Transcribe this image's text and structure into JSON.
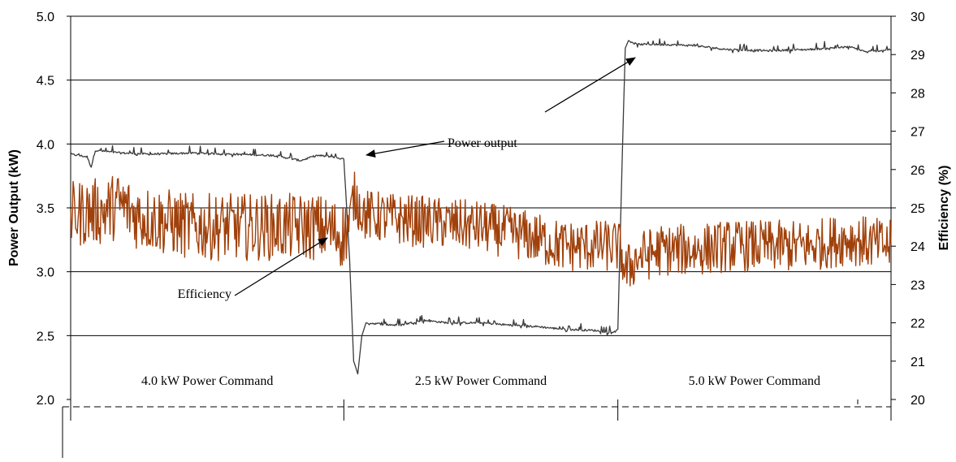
{
  "chart_data": {
    "type": "line",
    "title": "",
    "xlabel": "",
    "ylabel_left": "Power Output (kW)",
    "ylabel_right": "Efficiency (%)",
    "ylim_left": [
      2.0,
      5.0
    ],
    "ylim_right": [
      20,
      30
    ],
    "yticks_left": [
      "5.0",
      "4.5",
      "4.0",
      "3.5",
      "3.0",
      "2.5",
      "2.0"
    ],
    "yticks_right": [
      "30",
      "29",
      "28",
      "27",
      "26",
      "25",
      "24",
      "23",
      "22",
      "21",
      "20"
    ],
    "xlim": [
      0,
      1000
    ],
    "grid": true,
    "segments": [
      {
        "label": "4.0 kW Power Command",
        "start": 0,
        "end": 333
      },
      {
        "label": "2.5 kW Power Command",
        "start": 333,
        "end": 667
      },
      {
        "label": "5.0 kW Power Command",
        "start": 667,
        "end": 1000
      }
    ],
    "series": [
      {
        "name": "Power output",
        "axis": "left",
        "color": "#3a3a3a",
        "points": [
          [
            0,
            3.92
          ],
          [
            20,
            3.9
          ],
          [
            25,
            3.82
          ],
          [
            30,
            3.95
          ],
          [
            60,
            3.93
          ],
          [
            100,
            3.92
          ],
          [
            150,
            3.93
          ],
          [
            200,
            3.92
          ],
          [
            250,
            3.91
          ],
          [
            280,
            3.87
          ],
          [
            300,
            3.91
          ],
          [
            320,
            3.9
          ],
          [
            333,
            3.88
          ],
          [
            340,
            3.1
          ],
          [
            345,
            2.3
          ],
          [
            350,
            2.2
          ],
          [
            355,
            2.5
          ],
          [
            360,
            2.6
          ],
          [
            400,
            2.58
          ],
          [
            430,
            2.62
          ],
          [
            460,
            2.6
          ],
          [
            500,
            2.6
          ],
          [
            540,
            2.58
          ],
          [
            570,
            2.57
          ],
          [
            600,
            2.55
          ],
          [
            640,
            2.54
          ],
          [
            660,
            2.52
          ],
          [
            667,
            2.55
          ],
          [
            672,
            3.8
          ],
          [
            676,
            4.75
          ],
          [
            680,
            4.81
          ],
          [
            690,
            4.78
          ],
          [
            720,
            4.78
          ],
          [
            760,
            4.77
          ],
          [
            800,
            4.74
          ],
          [
            850,
            4.73
          ],
          [
            900,
            4.74
          ],
          [
            950,
            4.76
          ],
          [
            970,
            4.72
          ],
          [
            1000,
            4.74
          ]
        ]
      },
      {
        "name": "Efficiency",
        "axis": "right",
        "color": "#a0400a",
        "points": [
          [
            0,
            24.8
          ],
          [
            20,
            24.9
          ],
          [
            40,
            24.9
          ],
          [
            60,
            25.1
          ],
          [
            80,
            24.8
          ],
          [
            100,
            24.7
          ],
          [
            150,
            24.5
          ],
          [
            200,
            24.5
          ],
          [
            250,
            24.5
          ],
          [
            300,
            24.5
          ],
          [
            333,
            24.3
          ],
          [
            340,
            24.6
          ],
          [
            345,
            25.3
          ],
          [
            360,
            24.8
          ],
          [
            400,
            24.7
          ],
          [
            450,
            24.6
          ],
          [
            500,
            24.5
          ],
          [
            550,
            24.3
          ],
          [
            600,
            24.0
          ],
          [
            640,
            24.0
          ],
          [
            667,
            24.0
          ],
          [
            672,
            23.8
          ],
          [
            676,
            23.3
          ],
          [
            690,
            23.7
          ],
          [
            720,
            23.9
          ],
          [
            760,
            23.9
          ],
          [
            800,
            24.0
          ],
          [
            850,
            24.0
          ],
          [
            900,
            24.0
          ],
          [
            950,
            24.2
          ],
          [
            970,
            24.1
          ],
          [
            1000,
            24.0
          ]
        ]
      }
    ],
    "annotations": [
      {
        "text": "Power output",
        "series": "Power output"
      },
      {
        "text": "Efficiency",
        "series": "Efficiency"
      }
    ]
  }
}
